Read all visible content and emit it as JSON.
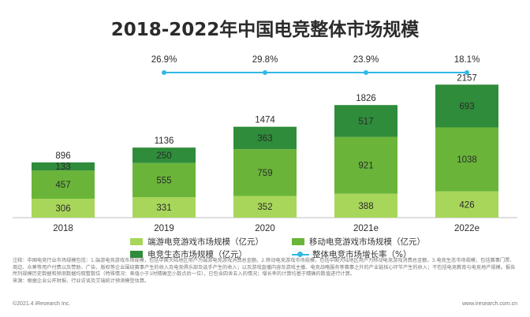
{
  "chart_data": {
    "type": "bar",
    "title": "2018-2022年中国电竞整体市场规模",
    "categories": [
      "2018",
      "2019",
      "2020",
      "2021e",
      "2022e"
    ],
    "series": [
      {
        "name": "端游电竞游戏市场规模（亿元）",
        "values": [
          306,
          331,
          352,
          388,
          426
        ],
        "color": "#a8d65a"
      },
      {
        "name": "移动电竞游戏市场规模（亿元）",
        "values": [
          457,
          555,
          759,
          921,
          1038
        ],
        "color": "#6ab539"
      },
      {
        "name": "电竞生态市场规模（亿元）",
        "values": [
          133,
          250,
          363,
          517,
          693
        ],
        "color": "#2f8c3a"
      }
    ],
    "totals": [
      896,
      1136,
      1474,
      1826,
      2157
    ],
    "line": {
      "name": "整体电竞市场增长率（%）",
      "values_label": [
        "",
        "26.9%",
        "29.8%",
        "23.9%",
        "18.1%"
      ],
      "values": [
        null,
        26.9,
        29.8,
        23.9,
        18.1
      ],
      "color": "#31b8e6"
    },
    "stacked": true
  },
  "notes": "注释：中国电竞行业市场规模包括：1.端游电竞游戏市场规模，包括中国大陆地区用户为端游电竞游戏消费总金额。2.移动电竞游戏市场规模，包括中国大陆地区用户为移动电竞游戏消费总金额。3.电竞生态市场规模，包括赛事门票、周边、众筹等用户付费以及赞助、广告、版权等企业围绕赛事产生的收入及电竞俱乐部及选手产生的收入；以及游戏直播内容及游戏主播、电竞战略服务等赛事之外的产业链核心环节产生的收入；不包括电竞教育与电竞地产规模。报告所列规模历史数据和预测数据均取整数位（特殊情况：差值小于1时精确至小数点后一位），已包含四舍五入的情况；增长率的计算均基于精确的数值进行计算。",
  "source": "来源：根据企业公开财报、行业访谈及艾瑞统计预测模型估算。",
  "copyright": "©2021.4 iResearch Inc.",
  "website": "www.iresearch.com.cn"
}
